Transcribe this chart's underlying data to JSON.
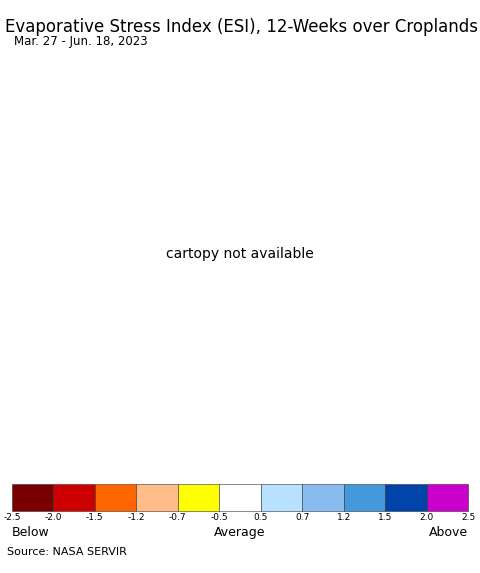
{
  "title": "Evaporative Stress Index (ESI), 12-Weeks over Croplands",
  "subtitle": "Mar. 27 - Jun. 18, 2023",
  "source": "Source: NASA SERVIR",
  "colorbar_colors": [
    "#7A0000",
    "#CC0000",
    "#FF6600",
    "#FFBB88",
    "#FFFF00",
    "#FFFFFF",
    "#B8E0FF",
    "#88BBEE",
    "#4499DD",
    "#0044AA",
    "#CC00CC"
  ],
  "tick_labels": [
    "-2.5",
    "-2.0",
    "-1.5",
    "-1.2",
    "-0.7",
    "-0.5",
    "0.5",
    "0.7",
    "1.2",
    "1.5",
    "2.0",
    "2.5"
  ],
  "label_below": "Below",
  "label_average": "Average",
  "label_above": "Above",
  "ocean_color": "#C8EEFF",
  "land_color": "#E8E4E0",
  "border_color_major": "#222222",
  "border_color_minor": "#888888",
  "title_fontsize": 12,
  "subtitle_fontsize": 8.5,
  "source_fontsize": 8,
  "extent": [
    -20,
    55,
    -38,
    40
  ]
}
